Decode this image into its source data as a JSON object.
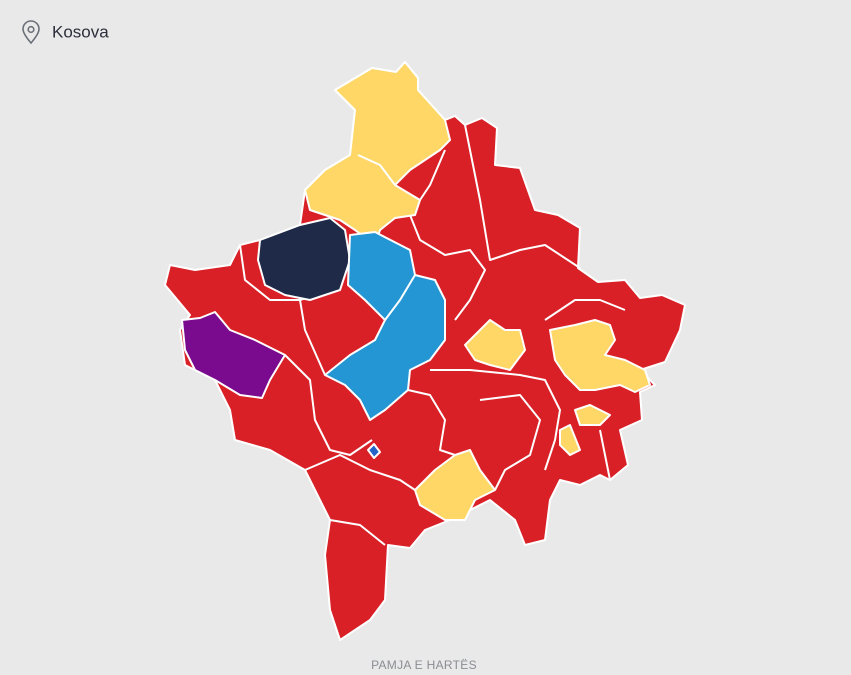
{
  "header": {
    "title": "Kosova"
  },
  "footer": {
    "label": "PAMJA E HARTËS"
  }
}
